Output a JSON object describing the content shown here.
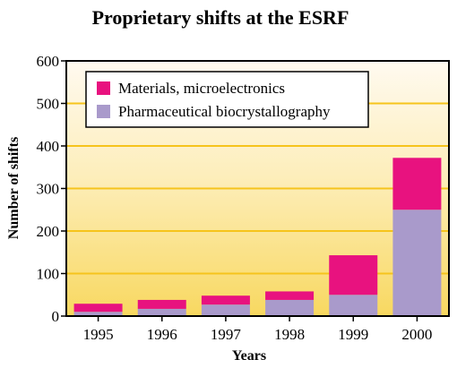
{
  "chart_data": {
    "type": "bar",
    "stacked": true,
    "title": "Proprietary shifts at the ESRF",
    "xlabel": "Years",
    "ylabel": "Number of shifts",
    "categories": [
      "1995",
      "1996",
      "1997",
      "1998",
      "1999",
      "2000"
    ],
    "series": [
      {
        "name": "Pharmaceutical biocrystallography",
        "color": "#a99acb",
        "values": [
          10,
          17,
          27,
          38,
          50,
          250
        ]
      },
      {
        "name": "Materials, microelectronics",
        "color": "#e8127f",
        "values": [
          19,
          21,
          21,
          20,
          93,
          122
        ]
      }
    ],
    "legend_order": [
      1,
      0
    ],
    "ylim": [
      0,
      600
    ],
    "yticks": [
      0,
      100,
      200,
      300,
      400,
      500,
      600
    ],
    "grid": true,
    "grid_color": "#f6c41c",
    "background": "gradient yellow (light at top, deeper yellow at bottom)",
    "legend_position": "top-left"
  }
}
